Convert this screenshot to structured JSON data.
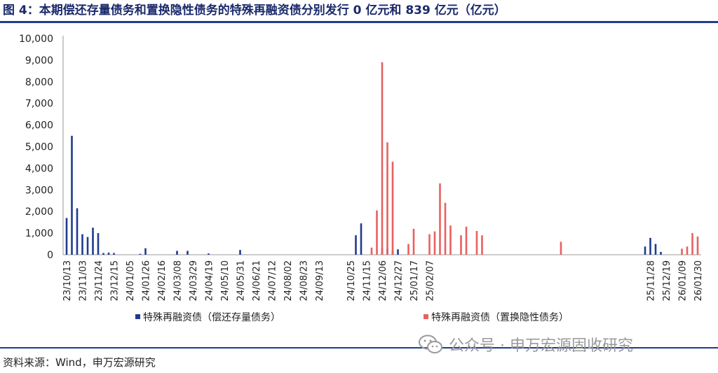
{
  "header": {
    "title": "图 4：本期偿还存量债务和置换隐性债务的特殊再融资债分别发行 0 亿元和 839 亿元（亿元）"
  },
  "footer": {
    "source": "资料来源：Wind，申万宏源研究",
    "watermark": "公众号 · 申万宏源固收研究",
    "watermark_icon": "wechat-icon"
  },
  "colors": {
    "series1": "#1f3c8f",
    "series2": "#e8615f",
    "rule": "#1f3c8f"
  },
  "chart_data": {
    "type": "bar",
    "ylim": [
      0,
      10000
    ],
    "yticks": [
      "0",
      "1,000",
      "2,000",
      "3,000",
      "4,000",
      "5,000",
      "6,000",
      "7,000",
      "8,000",
      "9,000",
      "10,000"
    ],
    "x_tick_labels": [
      "23/10/13",
      "23/11/03",
      "23/11/24",
      "23/12/15",
      "24/01/05",
      "24/01/26",
      "24/02/16",
      "24/03/08",
      "24/03/29",
      "24/04/19",
      "24/05/10",
      "24/05/31",
      "24/06/21",
      "24/07/12",
      "24/08/02",
      "24/08/23",
      "24/09/13",
      "24/10/25",
      "24/11/15",
      "24/12/06",
      "24/12/27",
      "25/01/17",
      "25/02/07",
      "25/11/28",
      "25/12/19",
      "26/01/09",
      "26/01/30"
    ],
    "legend_position": "bottom",
    "series": [
      {
        "name": "特殊再融资债（偿还存量债务）",
        "points": [
          {
            "x": "23/10/13",
            "y": 1700
          },
          {
            "x": "23/10/20",
            "y": 5500
          },
          {
            "x": "23/10/27",
            "y": 2150
          },
          {
            "x": "23/11/03",
            "y": 950
          },
          {
            "x": "23/11/10",
            "y": 820
          },
          {
            "x": "23/11/17",
            "y": 1250
          },
          {
            "x": "23/11/24",
            "y": 1000
          },
          {
            "x": "23/12/01",
            "y": 80
          },
          {
            "x": "23/12/08",
            "y": 100
          },
          {
            "x": "23/12/15",
            "y": 80
          },
          {
            "x": "24/01/19",
            "y": 40
          },
          {
            "x": "24/01/26",
            "y": 300
          },
          {
            "x": "24/03/08",
            "y": 180
          },
          {
            "x": "24/03/22",
            "y": 180
          },
          {
            "x": "24/04/19",
            "y": 60
          },
          {
            "x": "24/05/31",
            "y": 220
          },
          {
            "x": "24/11/01",
            "y": 900
          },
          {
            "x": "24/11/08",
            "y": 1450
          },
          {
            "x": "24/12/06",
            "y": 300
          },
          {
            "x": "24/12/13",
            "y": 280
          },
          {
            "x": "24/12/20",
            "y": 200
          },
          {
            "x": "24/12/27",
            "y": 250
          },
          {
            "x": "25/11/21",
            "y": 380
          },
          {
            "x": "25/11/28",
            "y": 780
          },
          {
            "x": "25/12/05",
            "y": 500
          },
          {
            "x": "25/12/12",
            "y": 130
          },
          {
            "x": "26/01/30",
            "y": 0
          }
        ]
      },
      {
        "name": "特殊再融资债（置换隐性债务）",
        "points": [
          {
            "x": "24/11/22",
            "y": 330
          },
          {
            "x": "24/11/29",
            "y": 2050
          },
          {
            "x": "24/12/06",
            "y": 8900
          },
          {
            "x": "24/12/13",
            "y": 5200
          },
          {
            "x": "24/12/20",
            "y": 4300
          },
          {
            "x": "25/01/10",
            "y": 500
          },
          {
            "x": "25/01/17",
            "y": 1200
          },
          {
            "x": "25/02/07",
            "y": 950
          },
          {
            "x": "25/02/14",
            "y": 1080
          },
          {
            "x": "25/02/21",
            "y": 3300
          },
          {
            "x": "25/02/28",
            "y": 2400
          },
          {
            "x": "25/03/07",
            "y": 1350
          },
          {
            "x": "25/03/21",
            "y": 900
          },
          {
            "x": "25/03/28",
            "y": 1300
          },
          {
            "x": "25/04/11",
            "y": 1100
          },
          {
            "x": "25/04/18",
            "y": 900
          },
          {
            "x": "25/08/01",
            "y": 600
          },
          {
            "x": "26/01/09",
            "y": 280
          },
          {
            "x": "26/01/16",
            "y": 380
          },
          {
            "x": "26/01/23",
            "y": 1000
          },
          {
            "x": "26/01/30",
            "y": 839
          }
        ]
      }
    ]
  }
}
